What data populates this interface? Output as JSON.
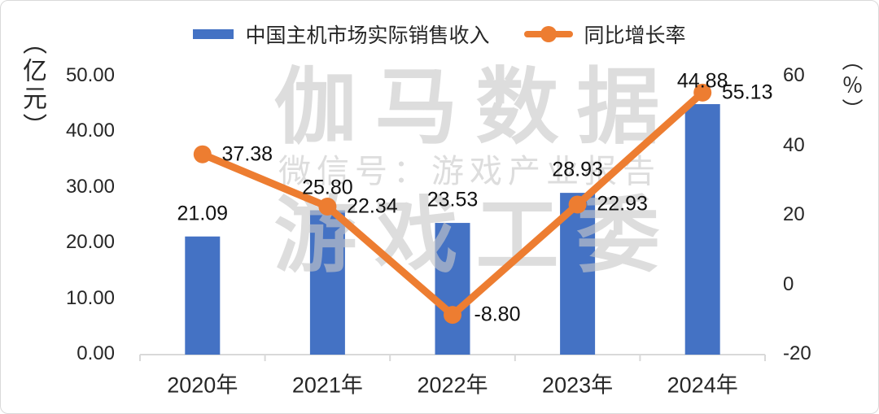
{
  "legend": {
    "series1_label": "中国主机市场实际销售收入",
    "series2_label": "同比增长率"
  },
  "left_axis_unit": "（亿元）",
  "right_axis_unit": "（％）",
  "watermark": {
    "line1": "伽马数据",
    "line2": "微信号：游戏产业报告",
    "line3": "游戏工委"
  },
  "colors": {
    "bar": "#4472C4",
    "line": "#ED7D31",
    "axis_line": "#D9D9D9",
    "label_text": "#111111"
  },
  "chart_data": {
    "type": "bar+line",
    "categories": [
      "2020年",
      "2021年",
      "2022年",
      "2023年",
      "2024年"
    ],
    "series": [
      {
        "name": "中国主机市场实际销售收入",
        "type": "bar",
        "axis": "left",
        "values": [
          21.09,
          25.8,
          23.53,
          28.93,
          44.88
        ],
        "color": "#4472C4"
      },
      {
        "name": "同比增长率",
        "type": "line",
        "axis": "right",
        "values": [
          37.38,
          22.34,
          -8.8,
          22.93,
          55.13
        ],
        "color": "#ED7D31"
      }
    ],
    "left_axis": {
      "unit": "亿元",
      "min": 0,
      "max": 50,
      "tick_step": 10,
      "tick_labels": [
        "0.00",
        "10.00",
        "20.00",
        "30.00",
        "40.00",
        "50.00"
      ]
    },
    "right_axis": {
      "unit": "%",
      "min": -20,
      "max": 60,
      "tick_step": 20,
      "tick_labels": [
        "-20",
        "0",
        "20",
        "40",
        "60"
      ]
    },
    "gridlines": false,
    "legend_position": "top",
    "data_labels_decimals": 2
  }
}
